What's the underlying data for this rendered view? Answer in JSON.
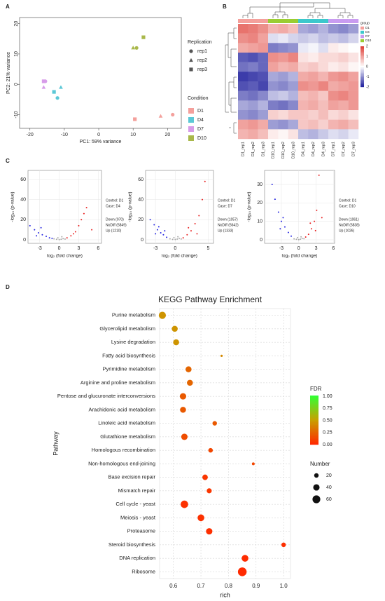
{
  "chart_data": [
    {
      "type": "scatter",
      "panel_label": "A",
      "xlabel": "PC1: 59% variance",
      "ylabel": "PC2: 21% variance",
      "xlim": [
        -23,
        24
      ],
      "ylim": [
        -14.5,
        22
      ],
      "xticks": [
        -20,
        -10,
        0,
        10,
        20
      ],
      "yticks": [
        -10,
        0,
        10,
        20
      ],
      "shape_legend_title": "Replication",
      "color_legend_title": "Condition",
      "shapes": [
        {
          "name": "rep1",
          "marker": "circle"
        },
        {
          "name": "rep2",
          "marker": "triangle"
        },
        {
          "name": "rep3",
          "marker": "square"
        }
      ],
      "series": [
        {
          "name": "D1",
          "color": "#f4a09c",
          "x": [
            21.5,
            18,
            10.5
          ],
          "y": [
            -10,
            -10.5,
            -11.5
          ]
        },
        {
          "name": "D4",
          "color": "#5cc8d6",
          "x": [
            -12,
            -11,
            -13
          ],
          "y": [
            -4.5,
            -1,
            -2.5
          ]
        },
        {
          "name": "D7",
          "color": "#d79ce9",
          "x": [
            -15.5,
            -16,
            -16
          ],
          "y": [
            1,
            -1,
            1
          ]
        },
        {
          "name": "D10",
          "color": "#a9b84a",
          "x": [
            11,
            10,
            13
          ],
          "y": [
            12,
            12,
            15.5
          ]
        }
      ]
    },
    {
      "type": "heatmap",
      "panel_label": "B",
      "columns": [
        "D1_rep1",
        "D1_rep2",
        "D1_rep3",
        "D10_rep1",
        "D10_rep2",
        "D10_rep3",
        "D4_rep1",
        "D4_rep2",
        "D4_rep3",
        "D7_rep1",
        "D7_rep2",
        "D7_rep3"
      ],
      "group_title": "group",
      "groups": [
        {
          "name": "D1",
          "color": "#f4a09c"
        },
        {
          "name": "D4",
          "color": "#3cc8cc"
        },
        {
          "name": "D7",
          "color": "#c99cf0"
        },
        {
          "name": "D10",
          "color": "#9acd32"
        }
      ],
      "column_groups": [
        0,
        0,
        0,
        3,
        3,
        3,
        1,
        1,
        1,
        2,
        2,
        2
      ],
      "zlim": [
        -2,
        2
      ],
      "zticks": [
        2,
        1,
        0,
        -1,
        -2
      ],
      "colors": [
        "#2626a0",
        "#ffffff",
        "#e0443c"
      ],
      "values": [
        [
          1.5,
          1.4,
          1.2,
          0.8,
          0.9,
          0.7,
          -0.8,
          -0.9,
          -0.7,
          -1.0,
          -1.1,
          -0.9
        ],
        [
          1.2,
          1.3,
          1.0,
          -0.3,
          -0.2,
          -0.4,
          -0.5,
          -0.4,
          -0.6,
          -0.5,
          -0.6,
          -0.4
        ],
        [
          0.9,
          1.0,
          1.1,
          -1.2,
          -1.1,
          -1.0,
          -0.2,
          -0.1,
          -0.3,
          0.2,
          0.1,
          0.0
        ],
        [
          -1.5,
          -1.6,
          -1.4,
          1.2,
          1.1,
          1.3,
          0.3,
          0.2,
          0.4,
          0.4,
          0.5,
          0.3
        ],
        [
          -1.3,
          -1.2,
          -1.4,
          1.0,
          0.8,
          0.9,
          0.5,
          0.6,
          0.4,
          0.2,
          0.3,
          0.1
        ],
        [
          -1.8,
          -1.7,
          -1.6,
          -0.8,
          -0.9,
          -0.7,
          0.9,
          1.0,
          0.8,
          1.1,
          1.2,
          1.0
        ],
        [
          -1.6,
          -1.5,
          -1.7,
          -1.0,
          -1.1,
          -0.9,
          1.2,
          1.1,
          1.3,
          0.9,
          1.0,
          1.1
        ],
        [
          -1.2,
          -1.3,
          -1.1,
          -0.6,
          -0.5,
          -0.7,
          0.7,
          0.8,
          0.6,
          1.2,
          1.3,
          1.1
        ],
        [
          -0.8,
          -0.9,
          -0.7,
          -1.2,
          -1.3,
          -1.1,
          0.8,
          0.9,
          0.7,
          1.0,
          0.9,
          1.1
        ],
        [
          -1.0,
          -1.1,
          -0.9,
          0.5,
          0.4,
          0.6,
          0.6,
          0.5,
          0.7,
          0.4,
          0.5,
          0.3
        ],
        [
          1.0,
          1.1,
          0.9,
          -0.9,
          -1.0,
          -0.8,
          0.6,
          0.7,
          0.5,
          0.8,
          0.9,
          0.7
        ],
        [
          0.8,
          0.9,
          0.7,
          0.2,
          0.1,
          0.3,
          -0.6,
          -0.7,
          -0.5,
          -0.3,
          -0.4,
          -0.2
        ]
      ]
    },
    {
      "type": "volcano",
      "panel_label": "C",
      "xlabel": "log₂ (fold change)",
      "ylabel": "-log₁₀ (p-value)",
      "control": "Control: D1",
      "case": "Case: D4",
      "xlim": [
        -4.8,
        6.5
      ],
      "ylim": [
        -3.5,
        69
      ],
      "xticks": [
        -3,
        0,
        3,
        6
      ],
      "yticks": [
        0,
        20,
        40,
        60
      ],
      "series": [
        {
          "name": "Down (970)",
          "color": "#2424e0",
          "x": [
            -4.5,
            -3.8,
            -3.2,
            -2.6,
            -2.0,
            -1.5,
            -1.1,
            -3.5,
            -2.8
          ],
          "y": [
            14,
            10,
            7,
            5,
            3.5,
            2,
            1.5,
            4,
            12
          ]
        },
        {
          "name": "NoDiff (5849)",
          "color": "#a8a8a8",
          "x": [
            -0.8,
            -0.4,
            0,
            0.3,
            0.6,
            0.9,
            -0.2,
            0.4
          ],
          "y": [
            1,
            0.5,
            0.2,
            0.6,
            1.2,
            0.8,
            2,
            3
          ]
        },
        {
          "name": "Up (1210)",
          "color": "#e82020",
          "x": [
            1.2,
            1.8,
            2.5,
            3.0,
            3.4,
            3.8,
            4.2,
            2.2,
            5.0
          ],
          "y": [
            2,
            4,
            8,
            14,
            20,
            26,
            32,
            6,
            10
          ]
        }
      ]
    },
    {
      "type": "volcano",
      "xlabel": "log₂ (fold change)",
      "ylabel": "-log₁₀ (p-value)",
      "control": "Control: D1",
      "case": "Case: D7",
      "xlim": [
        -4.5,
        5.8
      ],
      "ylim": [
        -3.5,
        69
      ],
      "xticks": [
        -3,
        0,
        5
      ],
      "yticks": [
        0,
        20,
        40,
        60
      ],
      "series": [
        {
          "name": "Down (1057)",
          "color": "#2424e0",
          "x": [
            -3.8,
            -3.2,
            -2.7,
            -2.2,
            -1.8,
            -1.3,
            -3.0,
            -2.5,
            -1.6
          ],
          "y": [
            20,
            15,
            10,
            7,
            5,
            2.5,
            6,
            13,
            9
          ]
        },
        {
          "name": "NoDiff (5642)",
          "color": "#a8a8a8",
          "x": [
            -0.8,
            -0.4,
            0,
            0.3,
            0.6,
            0.9,
            -0.2,
            0.4
          ],
          "y": [
            1,
            0.4,
            0.3,
            0.8,
            1.5,
            0.9,
            2.2,
            3
          ]
        },
        {
          "name": "Up (1333)",
          "color": "#e82020",
          "x": [
            1.2,
            1.8,
            2.4,
            3.0,
            3.6,
            4.1,
            4.5,
            2.0,
            3.3
          ],
          "y": [
            2,
            5,
            9,
            16,
            24,
            40,
            58,
            12,
            6
          ]
        }
      ]
    },
    {
      "type": "volcano",
      "xlabel": "log₂ (fold change)",
      "ylabel": "-log₁₀ (p-value)",
      "control": "Control: D1",
      "case": "Case: D10",
      "xlim": [
        -5.9,
        6.2
      ],
      "ylim": [
        -1.9,
        37.6
      ],
      "xticks": [
        -3,
        0,
        3,
        6
      ],
      "yticks": [
        0,
        10,
        20,
        30
      ],
      "series": [
        {
          "name": "Down (1061)",
          "color": "#2424e0",
          "x": [
            -4.6,
            -4.1,
            -3.5,
            -3.0,
            -2.4,
            -1.8,
            -1.3,
            -3.2,
            -2.7
          ],
          "y": [
            30,
            22,
            15,
            10,
            7,
            4,
            2,
            6,
            12
          ]
        },
        {
          "name": "NoDiff (5838)",
          "color": "#a8a8a8",
          "x": [
            -0.8,
            -0.4,
            0,
            0.3,
            0.6,
            0.9,
            -0.2,
            0.4
          ],
          "y": [
            0.5,
            0.3,
            0.1,
            0.4,
            0.8,
            0.6,
            1.2,
            1.6
          ]
        },
        {
          "name": "Up (1026)",
          "color": "#e82020",
          "x": [
            1.2,
            1.7,
            2.2,
            2.7,
            3.1,
            3.5,
            2.0,
            2.9,
            4.0
          ],
          "y": [
            1.5,
            3,
            6,
            10,
            16,
            35,
            9,
            5,
            12
          ]
        }
      ]
    },
    {
      "type": "dot",
      "panel_label": "D",
      "title": "KEGG Pathway Enrichment",
      "xlabel": "rich",
      "ylabel": "Pathway",
      "categories": [
        "Purine metabolism",
        "Glycerolipid metabolism",
        "Lysine degradation",
        "Fatty acid biosynthesis",
        "Pyrimidine metabolism",
        "Arginine and proline metabolism",
        "Pentose and glucuronate interconversions",
        "Arachidonic acid metabolism",
        "Linoleic acid metabolism",
        "Glutathione metabolism",
        "Homologous recombination",
        "Non-homologous end-joining",
        "Base excision repair",
        "Mismatch repair",
        "Cell cycle - yeast",
        "Meiosis - yeast",
        "Proteasome",
        "Steroid biosynthesis",
        "DNA replication",
        "Ribosome"
      ],
      "values": [
        0.56,
        0.605,
        0.61,
        0.775,
        0.655,
        0.66,
        0.635,
        0.635,
        0.75,
        0.64,
        0.735,
        0.89,
        0.715,
        0.73,
        0.64,
        0.7,
        0.73,
        1.0,
        0.86,
        0.85
      ],
      "sizes": [
        50,
        35,
        35,
        5,
        35,
        35,
        40,
        35,
        20,
        40,
        20,
        8,
        30,
        25,
        55,
        45,
        40,
        20,
        45,
        75
      ],
      "fdr": [
        0.45,
        0.45,
        0.45,
        0.4,
        0.25,
        0.25,
        0.2,
        0.2,
        0.2,
        0.15,
        0.12,
        0.12,
        0.05,
        0.05,
        0.03,
        0.03,
        0.02,
        0.02,
        0.01,
        0.0
      ],
      "xlim": [
        0.55,
        1.025
      ],
      "xticks": [
        0.6,
        0.7,
        0.8,
        0.9,
        {
          "value": 1,
          "label": "1.0"
        }
      ],
      "grid": true,
      "color_legend_title": "FDR",
      "color_lim": [
        0,
        1
      ],
      "color_ticks": [
        {
          "value": 1,
          "label": "1.00"
        },
        {
          "value": 0.75,
          "label": "0.75"
        },
        {
          "value": 0.5,
          "label": "0.50"
        },
        {
          "value": 0.25,
          "label": "0.25"
        },
        {
          "value": 0,
          "label": "0.00"
        }
      ],
      "colors": [
        "#ff2a00",
        "#c8a000",
        "#33ff33"
      ],
      "size_legend_title": "Number",
      "size_ticks": [
        20,
        40,
        60
      ]
    }
  ]
}
